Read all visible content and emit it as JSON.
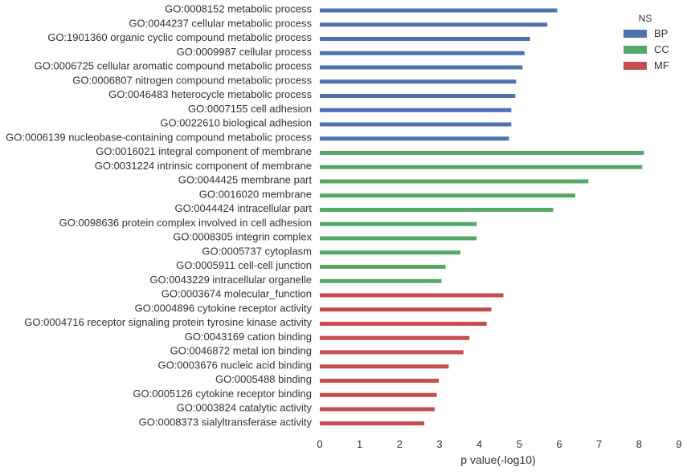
{
  "chart_data": {
    "type": "bar",
    "orientation": "horizontal",
    "xlabel": "p value(-log10)",
    "ylabel": "",
    "xlim": [
      0,
      9
    ],
    "xticks": [
      0,
      1,
      2,
      3,
      4,
      5,
      6,
      7,
      8,
      9
    ],
    "grid": false,
    "legend": {
      "title": "NS",
      "placement": "top-right",
      "entries": [
        {
          "name": "BP",
          "color": "#4c72b0"
        },
        {
          "name": "CC",
          "color": "#55a868"
        },
        {
          "name": "MF",
          "color": "#c44e52"
        }
      ]
    },
    "bars": [
      {
        "label": "GO:0008152 metabolic process",
        "value": 5.95,
        "group": "BP"
      },
      {
        "label": "GO:0044237 cellular metabolic process",
        "value": 5.7,
        "group": "BP"
      },
      {
        "label": "GO:1901360 organic cyclic compound metabolic process",
        "value": 5.27,
        "group": "BP"
      },
      {
        "label": "GO:0009987 cellular process",
        "value": 5.13,
        "group": "BP"
      },
      {
        "label": "GO:0006725 cellular aromatic compound metabolic process",
        "value": 5.08,
        "group": "BP"
      },
      {
        "label": "GO:0006807 nitrogen compound metabolic process",
        "value": 4.92,
        "group": "BP"
      },
      {
        "label": "GO:0046483 heterocycle metabolic process",
        "value": 4.9,
        "group": "BP"
      },
      {
        "label": "GO:0007155 cell adhesion",
        "value": 4.8,
        "group": "BP"
      },
      {
        "label": "GO:0022610 biological adhesion",
        "value": 4.8,
        "group": "BP"
      },
      {
        "label": "GO:0006139 nucleobase-containing compound metabolic process",
        "value": 4.74,
        "group": "BP"
      },
      {
        "label": "GO:0016021 integral component of membrane",
        "value": 8.12,
        "group": "CC"
      },
      {
        "label": "GO:0031224 intrinsic component of membrane",
        "value": 8.08,
        "group": "CC"
      },
      {
        "label": "GO:0044425 membrane part",
        "value": 6.73,
        "group": "CC"
      },
      {
        "label": "GO:0016020 membrane",
        "value": 6.4,
        "group": "CC"
      },
      {
        "label": "GO:0044424 intracellular part",
        "value": 5.85,
        "group": "CC"
      },
      {
        "label": "GO:0098636 protein complex involved in cell adhesion",
        "value": 3.93,
        "group": "CC"
      },
      {
        "label": "GO:0008305 integrin complex",
        "value": 3.93,
        "group": "CC"
      },
      {
        "label": "GO:0005737 cytoplasm",
        "value": 3.52,
        "group": "CC"
      },
      {
        "label": "GO:0005911 cell-cell junction",
        "value": 3.15,
        "group": "CC"
      },
      {
        "label": "GO:0043229 intracellular organelle",
        "value": 3.05,
        "group": "CC"
      },
      {
        "label": "GO:0003674 molecular_function",
        "value": 4.6,
        "group": "MF"
      },
      {
        "label": "GO:0004896 cytokine receptor activity",
        "value": 4.3,
        "group": "MF"
      },
      {
        "label": "GO:0004716 receptor signaling protein tyrosine kinase activity",
        "value": 4.18,
        "group": "MF"
      },
      {
        "label": "GO:0043169 cation binding",
        "value": 3.75,
        "group": "MF"
      },
      {
        "label": "GO:0046872 metal ion binding",
        "value": 3.6,
        "group": "MF"
      },
      {
        "label": "GO:0003676 nucleic acid binding",
        "value": 3.23,
        "group": "MF"
      },
      {
        "label": "GO:0005488 binding",
        "value": 2.98,
        "group": "MF"
      },
      {
        "label": "GO:0005126 cytokine receptor binding",
        "value": 2.93,
        "group": "MF"
      },
      {
        "label": "GO:0003824 catalytic activity",
        "value": 2.88,
        "group": "MF"
      },
      {
        "label": "GO:0008373 sialyltransferase activity",
        "value": 2.62,
        "group": "MF"
      }
    ]
  }
}
